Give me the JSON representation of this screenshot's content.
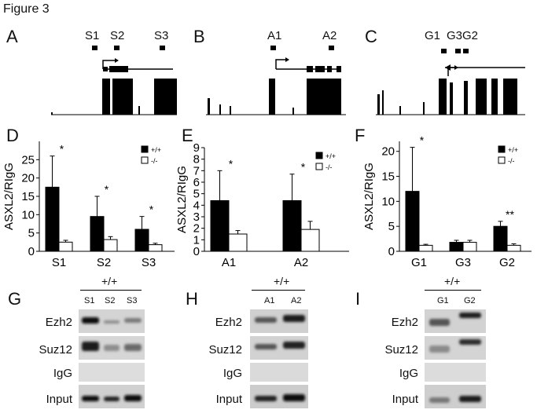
{
  "figure_title": "Figure 3",
  "panels": {
    "A": {
      "letter": "A",
      "probes": [
        "S1",
        "S2",
        "S3"
      ]
    },
    "B": {
      "letter": "B",
      "probes": [
        "A1",
        "A2"
      ]
    },
    "C": {
      "letter": "C",
      "probes": [
        "G1",
        "G3G2"
      ]
    },
    "D": {
      "letter": "D"
    },
    "E": {
      "letter": "E"
    },
    "F": {
      "letter": "F"
    },
    "G": {
      "letter": "G",
      "genotype": "+/+",
      "lanes": [
        "S1",
        "S2",
        "S3"
      ]
    },
    "H": {
      "letter": "H",
      "genotype": "+/+",
      "lanes": [
        "A1",
        "A2"
      ]
    },
    "I": {
      "letter": "I",
      "genotype": "+/+",
      "lanes": [
        "G1",
        "G2"
      ]
    }
  },
  "gel_rows": [
    "Ezh2",
    "Suz12",
    "IgG",
    "Input"
  ],
  "chart_data": [
    {
      "type": "bar",
      "panel": "D",
      "title": "",
      "xlabel": "",
      "ylabel": "ASXL2/RIgG",
      "categories": [
        "S1",
        "S2",
        "S3"
      ],
      "ylim": [
        0,
        30
      ],
      "yticks": [
        "0",
        "5",
        "10",
        "15",
        "20",
        "25"
      ],
      "legend_position": "top-right",
      "series": [
        {
          "name": "+/+",
          "color": "#000000",
          "values": [
            17.5,
            9.5,
            6.0
          ],
          "errors": [
            8.5,
            5.5,
            3.5
          ]
        },
        {
          "name": "-/-",
          "color": "#ffffff",
          "values": [
            2.5,
            3.2,
            1.8
          ],
          "errors": [
            0.5,
            0.8,
            0.4
          ]
        }
      ],
      "annotations": [
        "*",
        "*",
        "*"
      ]
    },
    {
      "type": "bar",
      "panel": "E",
      "title": "",
      "xlabel": "",
      "ylabel": "ASXL2/RIgG",
      "categories": [
        "A1",
        "A2"
      ],
      "ylim": [
        0,
        9
      ],
      "yticks": [
        "0",
        "1",
        "2",
        "3",
        "4",
        "5",
        "6",
        "7",
        "8",
        "9"
      ],
      "legend_position": "top-right",
      "series": [
        {
          "name": "+/+",
          "color": "#000000",
          "values": [
            4.4,
            4.4
          ],
          "errors": [
            2.6,
            2.3
          ]
        },
        {
          "name": "-/-",
          "color": "#ffffff",
          "values": [
            1.5,
            1.9
          ],
          "errors": [
            0.3,
            0.7
          ]
        }
      ],
      "annotations": [
        "*",
        "*"
      ]
    },
    {
      "type": "bar",
      "panel": "F",
      "title": "",
      "xlabel": "",
      "ylabel": "ASXL2/RIgG",
      "categories": [
        "G1",
        "G3",
        "G2"
      ],
      "ylim": [
        0,
        22
      ],
      "yticks": [
        "0",
        "5",
        "10",
        "15",
        "20"
      ],
      "legend_position": "top-right",
      "series": [
        {
          "name": "+/+",
          "color": "#000000",
          "values": [
            12.0,
            1.8,
            5.0
          ],
          "errors": [
            8.8,
            0.4,
            1.0
          ]
        },
        {
          "name": "-/-",
          "color": "#ffffff",
          "values": [
            1.2,
            1.8,
            1.2
          ],
          "errors": [
            0.2,
            0.4,
            0.3
          ]
        }
      ],
      "annotations": [
        "*",
        "",
        "**"
      ]
    }
  ]
}
